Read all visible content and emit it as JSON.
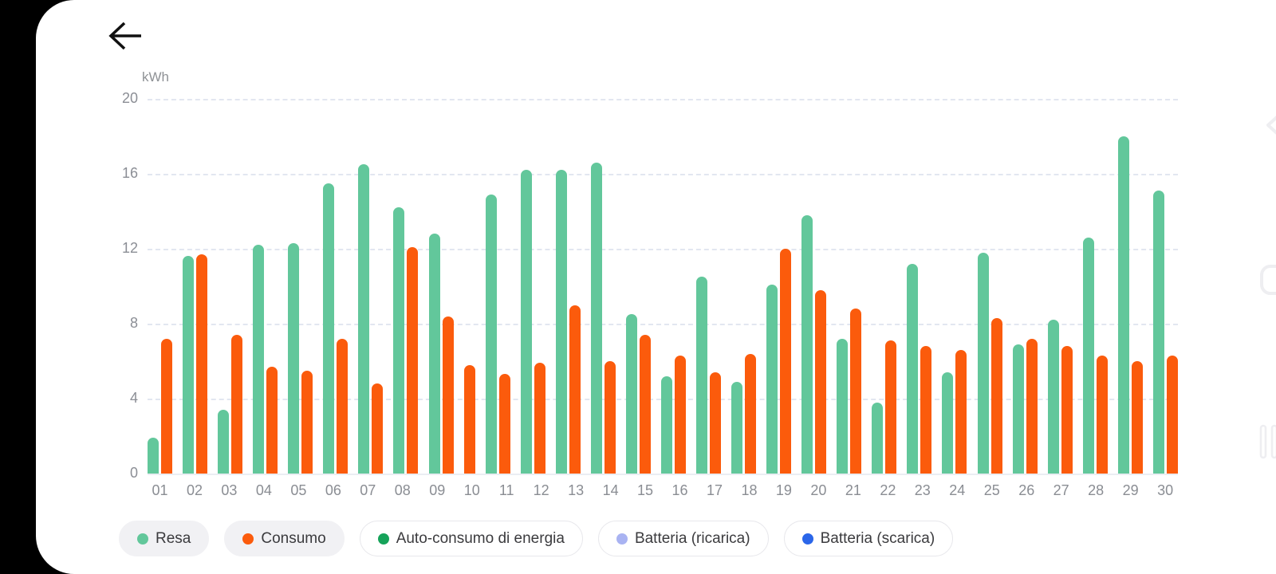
{
  "header": {
    "back_icon": "arrow-left"
  },
  "chart_data": {
    "type": "bar",
    "title": "",
    "unit_label": "kWh",
    "xlabel": "",
    "ylabel": "kWh",
    "ylim": [
      0,
      20
    ],
    "yticks": [
      20,
      16,
      12,
      8,
      4,
      0
    ],
    "grid": "horizontal-dashed",
    "legend_position": "bottom",
    "categories": [
      "01",
      "02",
      "03",
      "04",
      "05",
      "06",
      "07",
      "08",
      "09",
      "10",
      "11",
      "12",
      "13",
      "14",
      "15",
      "16",
      "17",
      "18",
      "19",
      "20",
      "21",
      "22",
      "23",
      "24",
      "25",
      "26",
      "27",
      "28",
      "29",
      "30"
    ],
    "series": [
      {
        "name": "Resa",
        "color": "#62c79b",
        "values": [
          1.9,
          11.6,
          3.4,
          12.2,
          12.3,
          15.5,
          16.5,
          14.2,
          12.8,
          0,
          14.9,
          16.2,
          16.2,
          16.6,
          8.5,
          5.2,
          10.5,
          4.9,
          10.1,
          13.8,
          7.2,
          3.8,
          11.2,
          5.4,
          11.8,
          6.9,
          8.2,
          12.6,
          18.0,
          15.1
        ]
      },
      {
        "name": "Consumo",
        "color": "#fb5b0c",
        "values": [
          7.2,
          11.7,
          7.4,
          5.7,
          5.5,
          7.2,
          4.8,
          12.1,
          8.4,
          5.8,
          5.3,
          5.9,
          9.0,
          6.0,
          7.4,
          6.3,
          5.4,
          6.4,
          12.0,
          9.8,
          8.8,
          7.1,
          6.8,
          6.6,
          8.3,
          7.2,
          6.8,
          6.3,
          6.0,
          6.3
        ]
      }
    ]
  },
  "legend": {
    "items": [
      {
        "label": "Resa",
        "color": "#62c79b",
        "active": true
      },
      {
        "label": "Consumo",
        "color": "#fb5b0c",
        "active": true
      },
      {
        "label": "Auto-consumo di energia",
        "color": "#16a35a",
        "active": false
      },
      {
        "label": "Batteria (ricarica)",
        "color": "#a9b3f2",
        "active": false
      },
      {
        "label": "Batteria (scarica)",
        "color": "#2b66e9",
        "active": false
      }
    ]
  },
  "side_nav": {
    "icons": [
      "chevron-left-icon",
      "recents-square-icon",
      "nav-handle-bars-icon"
    ]
  },
  "colors": {
    "background": "#000000",
    "screen": "#ffffff",
    "grid": "#e2e6f0",
    "baseline": "#ebedf3",
    "axis_text": "#8b8e95",
    "legend_text": "#3b3b3e",
    "nav_icon": "#eeeef1"
  }
}
